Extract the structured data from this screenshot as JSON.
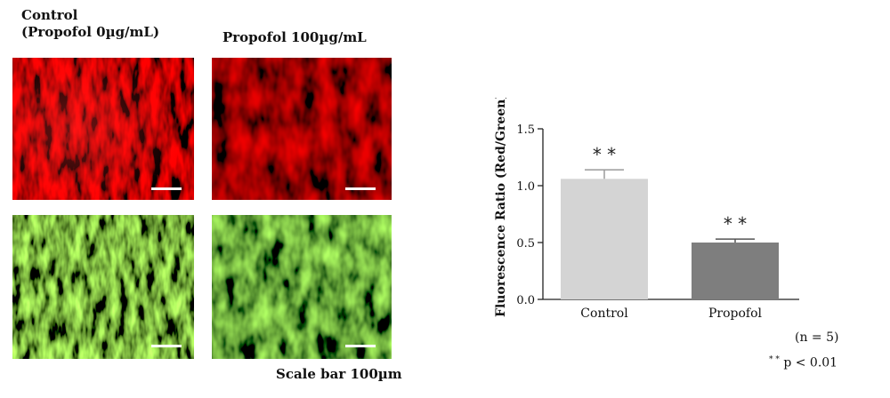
{
  "figure": {
    "label_control_line1": "Control",
    "label_control_line2": "(Propofol 0µg/mL)",
    "label_propofol": "Propofol 100µg/mL",
    "scale_bar_text": "Scale bar 100µm",
    "panels": [
      {
        "name": "micrograph-control-red",
        "channel": "red"
      },
      {
        "name": "micrograph-propofol-red",
        "channel": "red"
      },
      {
        "name": "micrograph-control-green",
        "channel": "green"
      },
      {
        "name": "micrograph-propofol-green",
        "channel": "green"
      }
    ],
    "colors": {
      "red_channel": "#c8141a",
      "green_channel": "#5fae2a"
    }
  },
  "chart_data": {
    "type": "bar",
    "categories": [
      "Control",
      "Propofol"
    ],
    "values": [
      1.06,
      0.5
    ],
    "errors": [
      0.08,
      0.03
    ],
    "significance": [
      "* *",
      "* *"
    ],
    "bar_colors": [
      "#d4d4d4",
      "#7e7e7e"
    ],
    "title": "",
    "xlabel": "",
    "ylabel": "Fluorescence Ratio (Red/Green)",
    "ylim": [
      0,
      1.5
    ],
    "yticks": [
      "0.0",
      "0.5",
      "1.0",
      "1.5"
    ],
    "grid": false,
    "n_note": "(n = 5)",
    "p_note_stars": "* *",
    "p_note_text": "p < 0.01"
  }
}
